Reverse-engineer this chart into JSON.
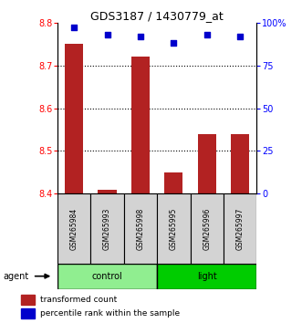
{
  "title": "GDS3187 / 1430779_at",
  "samples": [
    "GSM265984",
    "GSM265993",
    "GSM265998",
    "GSM265995",
    "GSM265996",
    "GSM265997"
  ],
  "groups": [
    "control",
    "control",
    "control",
    "light",
    "light",
    "light"
  ],
  "bar_values": [
    8.75,
    8.41,
    8.72,
    8.45,
    8.54,
    8.54
  ],
  "percentile_values": [
    97,
    93,
    92,
    88,
    93,
    92
  ],
  "ylim_left": [
    8.4,
    8.8
  ],
  "ylim_right": [
    0,
    100
  ],
  "yticks_left": [
    8.4,
    8.5,
    8.6,
    8.7,
    8.8
  ],
  "yticks_right": [
    0,
    25,
    50,
    75,
    100
  ],
  "bar_color": "#B22222",
  "dot_color": "#0000CC",
  "bar_base": 8.4,
  "control_color": "#90EE90",
  "light_color": "#00CC00",
  "legend_bar_label": "transformed count",
  "legend_dot_label": "percentile rank within the sample",
  "agent_label": "agent",
  "group_label_control": "control",
  "group_label_light": "light",
  "grid_yticks": [
    8.5,
    8.6,
    8.7
  ]
}
